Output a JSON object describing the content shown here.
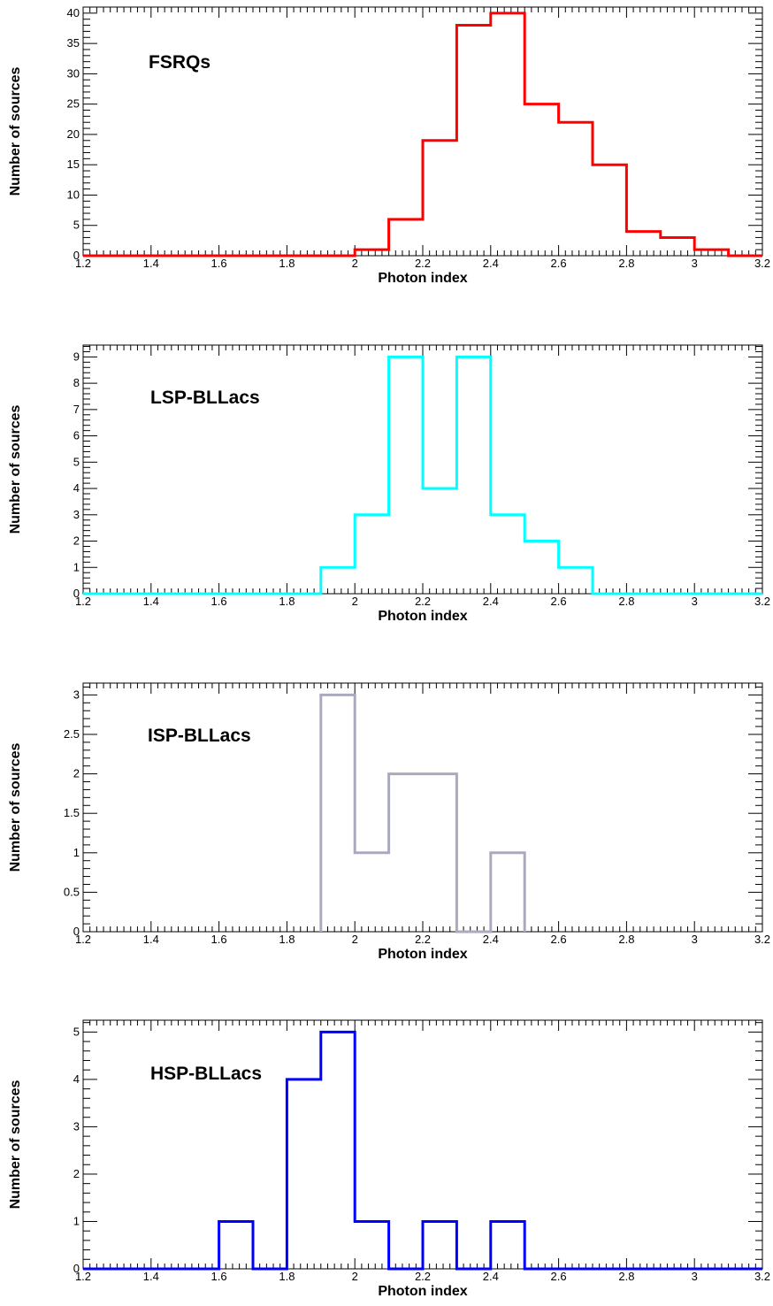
{
  "chart_data": [
    {
      "type": "histogram",
      "title": "",
      "label": "FSRQs",
      "color": "#ff0000",
      "xlabel": "Photon index",
      "ylabel": "Number of sources",
      "xlim": [
        1.2,
        3.2
      ],
      "ylim": [
        0,
        41
      ],
      "xticks": [
        1.2,
        1.4,
        1.6,
        1.8,
        2,
        2.2,
        2.4,
        2.6,
        2.8,
        3,
        3.2
      ],
      "yticks": [
        0,
        5,
        10,
        15,
        20,
        25,
        30,
        35,
        40
      ],
      "minor_x": 0.02,
      "minor_y": 1,
      "bin_edges": [
        1.2,
        1.3,
        1.4,
        1.5,
        1.6,
        1.7,
        1.8,
        1.9,
        2.0,
        2.1,
        2.2,
        2.3,
        2.4,
        2.5,
        2.6,
        2.7,
        2.8,
        2.9,
        3.0,
        3.1,
        3.2
      ],
      "values": [
        0,
        0,
        0,
        0,
        0,
        0,
        0,
        0,
        1,
        6,
        19,
        38,
        40,
        25,
        22,
        15,
        4,
        3,
        1,
        0
      ]
    },
    {
      "type": "histogram",
      "title": "",
      "label": "LSP-BLLacs",
      "color": "#00ffff",
      "xlabel": "Photon index",
      "ylabel": "Number of sources",
      "xlim": [
        1.2,
        3.2
      ],
      "ylim": [
        0,
        9.45
      ],
      "xticks": [
        1.2,
        1.4,
        1.6,
        1.8,
        2,
        2.2,
        2.4,
        2.6,
        2.8,
        3,
        3.2
      ],
      "yticks": [
        0,
        1,
        2,
        3,
        4,
        5,
        6,
        7,
        8,
        9
      ],
      "minor_x": 0.02,
      "minor_y": 0.2,
      "bin_edges": [
        1.2,
        1.3,
        1.4,
        1.5,
        1.6,
        1.7,
        1.8,
        1.9,
        2.0,
        2.1,
        2.2,
        2.3,
        2.4,
        2.5,
        2.6,
        2.7,
        2.8,
        2.9,
        3.0,
        3.1,
        3.2
      ],
      "values": [
        0,
        0,
        0,
        0,
        0,
        0,
        0,
        1,
        3,
        9,
        4,
        9,
        3,
        2,
        1,
        0,
        0,
        0,
        0,
        0
      ]
    },
    {
      "type": "histogram",
      "title": "",
      "label": "ISP-BLLacs",
      "color": "#aaaabf",
      "xlabel": "Photon index",
      "ylabel": "Number of sources",
      "xlim": [
        1.2,
        3.2
      ],
      "ylim": [
        0,
        3.15
      ],
      "xticks": [
        1.2,
        1.4,
        1.6,
        1.8,
        2,
        2.2,
        2.4,
        2.6,
        2.8,
        3,
        3.2
      ],
      "yticks": [
        0,
        0.5,
        1,
        1.5,
        2,
        2.5,
        3
      ],
      "minor_x": 0.02,
      "minor_y": 0.1,
      "bin_edges": [
        1.9,
        2.0,
        2.1,
        2.2,
        2.3,
        2.4,
        2.5
      ],
      "values": [
        3,
        1,
        2,
        2,
        0,
        1
      ],
      "outline_only_nonzero": true
    },
    {
      "type": "histogram",
      "title": "",
      "label": "HSP-BLLacs",
      "color": "#0000ff",
      "xlabel": "Photon index",
      "ylabel": "Number of sources",
      "xlim": [
        1.2,
        3.2
      ],
      "ylim": [
        0,
        5.25
      ],
      "xticks": [
        1.2,
        1.4,
        1.6,
        1.8,
        2,
        2.2,
        2.4,
        2.6,
        2.8,
        3,
        3.2
      ],
      "yticks": [
        0,
        1,
        2,
        3,
        4,
        5
      ],
      "minor_x": 0.02,
      "minor_y": 0.2,
      "bin_edges": [
        1.2,
        1.3,
        1.4,
        1.5,
        1.6,
        1.7,
        1.8,
        1.9,
        2.0,
        2.1,
        2.2,
        2.3,
        2.4,
        2.5,
        2.6,
        2.7,
        2.8,
        2.9,
        3.0,
        3.1,
        3.2
      ],
      "values": [
        0,
        0,
        0,
        0,
        1,
        0,
        4,
        5,
        1,
        0,
        1,
        0,
        1,
        0,
        0,
        0,
        0,
        0,
        0,
        0
      ]
    }
  ]
}
